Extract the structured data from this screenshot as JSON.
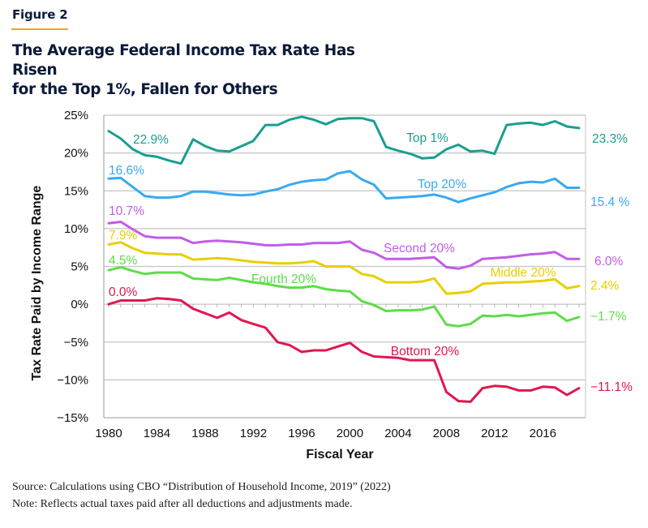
{
  "figure": {
    "label": "Figure 2",
    "title_line1": "The Average Federal Income Tax Rate Has Risen",
    "title_line2": "for the Top 1%, Fallen for Others",
    "accent_color": "#e3a437",
    "title_color": "#0b1a3a"
  },
  "footer": {
    "source": "Source: Calculations using CBO “Distribution of Household Income, 2019” (2022)",
    "note": "Note: Reflects actual taxes paid after all deductions and adjustments made."
  },
  "chart_data": {
    "type": "line",
    "title": "The Average Federal Income Tax Rate Has Risen for the Top 1%, Fallen for Others",
    "xlabel": "Fiscal Year",
    "ylabel": "Tax Rate Paid by Income Range",
    "xlim": [
      1980,
      2019
    ],
    "ylim": [
      -15,
      25
    ],
    "grid": true,
    "x_ticks": [
      "1980",
      "1984",
      "1988",
      "1992",
      "1996",
      "2000",
      "2004",
      "2008",
      "2012",
      "2016"
    ],
    "x_tick_values": [
      1980,
      1984,
      1988,
      1992,
      1996,
      2000,
      2004,
      2008,
      2012,
      2016
    ],
    "y_ticks": [
      "25%",
      "20%",
      "15%",
      "10%",
      "5%",
      "0%",
      "−5%",
      "−10%",
      "−15%"
    ],
    "y_tick_values": [
      25,
      20,
      15,
      10,
      5,
      0,
      -5,
      -10,
      -15
    ],
    "x": [
      1980,
      1981,
      1982,
      1983,
      1984,
      1985,
      1986,
      1987,
      1988,
      1989,
      1990,
      1991,
      1992,
      1993,
      1994,
      1995,
      1996,
      1997,
      1998,
      1999,
      2000,
      2001,
      2002,
      2003,
      2004,
      2005,
      2006,
      2007,
      2008,
      2009,
      2010,
      2011,
      2012,
      2013,
      2014,
      2015,
      2016,
      2017,
      2018,
      2019
    ],
    "series": [
      {
        "name": "Top 1%",
        "color": "#1a9e8f",
        "start_label": "22.9%",
        "end_label": "23.3%",
        "values": [
          22.9,
          21.9,
          20.5,
          19.7,
          19.5,
          19.0,
          18.6,
          21.8,
          20.9,
          20.3,
          20.2,
          20.9,
          21.6,
          23.7,
          23.7,
          24.4,
          24.8,
          24.4,
          23.8,
          24.5,
          24.6,
          24.6,
          24.2,
          20.8,
          20.3,
          19.9,
          19.3,
          19.4,
          20.5,
          21.1,
          20.2,
          20.3,
          19.9,
          23.7,
          23.9,
          24.0,
          23.7,
          24.2,
          23.5,
          23.3
        ]
      },
      {
        "name": "Top 20%",
        "color": "#38aaf0",
        "start_label": "16.6%",
        "end_label": "15.4 %",
        "values": [
          16.6,
          16.7,
          15.5,
          14.3,
          14.1,
          14.1,
          14.3,
          14.9,
          14.9,
          14.7,
          14.5,
          14.4,
          14.5,
          14.9,
          15.2,
          15.8,
          16.2,
          16.4,
          16.5,
          17.3,
          17.6,
          16.5,
          15.8,
          14.0,
          14.1,
          14.2,
          14.3,
          14.5,
          14.1,
          13.5,
          14.0,
          14.4,
          14.8,
          15.5,
          16.0,
          16.2,
          16.1,
          16.6,
          15.4,
          15.4
        ]
      },
      {
        "name": "Second 20%",
        "color": "#c25ce8",
        "start_label": "10.7%",
        "end_label": "6.0%",
        "values": [
          10.7,
          10.9,
          9.9,
          9.0,
          8.8,
          8.8,
          8.8,
          8.1,
          8.3,
          8.4,
          8.3,
          8.2,
          8.0,
          7.8,
          7.8,
          7.9,
          7.9,
          8.1,
          8.1,
          8.1,
          8.3,
          7.2,
          6.8,
          6.0,
          6.0,
          6.0,
          6.1,
          6.2,
          4.9,
          4.7,
          5.1,
          6.0,
          6.1,
          6.2,
          6.4,
          6.6,
          6.7,
          6.9,
          6.0,
          6.0
        ]
      },
      {
        "name": "Middle 20%",
        "color": "#e8cf00",
        "start_label": "7.9%",
        "end_label": "2.4%",
        "values": [
          7.9,
          8.2,
          7.4,
          6.8,
          6.7,
          6.6,
          6.6,
          5.9,
          6.0,
          6.1,
          6.0,
          5.8,
          5.6,
          5.5,
          5.4,
          5.4,
          5.5,
          5.7,
          5.0,
          5.0,
          5.0,
          4.0,
          3.7,
          2.9,
          2.9,
          2.9,
          3.0,
          3.4,
          1.4,
          1.5,
          1.7,
          2.7,
          2.8,
          2.9,
          2.9,
          3.0,
          3.1,
          3.3,
          2.1,
          2.4
        ]
      },
      {
        "name": "Fourth 20%",
        "color": "#5edc4a",
        "start_label": "4.5%",
        "end_label": "−1.7%",
        "values": [
          4.5,
          4.9,
          4.4,
          4.0,
          4.2,
          4.2,
          4.2,
          3.4,
          3.3,
          3.2,
          3.5,
          3.2,
          2.9,
          2.7,
          2.4,
          2.2,
          2.2,
          2.4,
          2.0,
          1.8,
          1.7,
          0.4,
          -0.1,
          -0.9,
          -0.8,
          -0.8,
          -0.7,
          -0.3,
          -2.7,
          -2.9,
          -2.6,
          -1.5,
          -1.6,
          -1.4,
          -1.6,
          -1.4,
          -1.2,
          -1.1,
          -2.2,
          -1.7
        ]
      },
      {
        "name": "Bottom 20%",
        "color": "#e0174f",
        "start_label": "0.0%",
        "end_label": "−11.1%",
        "values": [
          0.0,
          0.5,
          0.5,
          0.5,
          0.8,
          0.7,
          0.5,
          -0.6,
          -1.2,
          -1.8,
          -1.1,
          -2.1,
          -2.6,
          -3.1,
          -5.0,
          -5.4,
          -6.3,
          -6.1,
          -6.1,
          -5.6,
          -5.1,
          -6.3,
          -6.9,
          -7.0,
          -7.1,
          -7.4,
          -7.4,
          -7.4,
          -11.6,
          -12.8,
          -12.9,
          -11.1,
          -10.8,
          -10.9,
          -11.4,
          -11.4,
          -10.9,
          -11.0,
          -12.0,
          -11.1
        ]
      }
    ]
  }
}
